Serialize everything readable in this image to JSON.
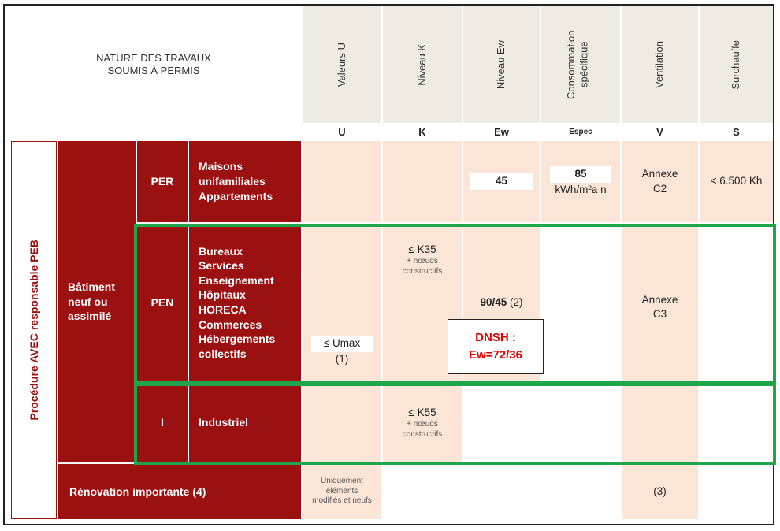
{
  "header": {
    "nature_line1": "NATURE DES TRAVAUX",
    "nature_line2": "SOUMIS À PERMIS",
    "columns": [
      {
        "title": "Valeurs U",
        "letter": "U"
      },
      {
        "title": "Niveau K",
        "letter": "K"
      },
      {
        "title": "Niveau Ew",
        "letter": "Ew"
      },
      {
        "title": "Consommation spécifique",
        "letter": "Espec"
      },
      {
        "title": "Ventilation",
        "letter": "V"
      },
      {
        "title": "Surchauffe",
        "letter": "S"
      }
    ]
  },
  "side_label": "Procédure AVEC responsable PEB",
  "batiment_label": "Bâtiment neuf ou assimilé",
  "rows": {
    "per": {
      "code": "PER",
      "types": [
        "Maisons",
        "unifamiliales",
        "Appartements"
      ],
      "ew": "45",
      "espec_value": "85",
      "espec_unit": "kWh/m²a n",
      "ventilation": "Annexe C2",
      "surchauffe": "< 6.500 Kh"
    },
    "pen": {
      "code": "PEN",
      "types": [
        "Bureaux",
        "Services",
        "Enseignement",
        "Hôpitaux",
        "HORECA",
        "Commerces",
        "Hébergements",
        "collectifs"
      ],
      "u_value": "≤ Umax",
      "u_note": "(1)",
      "k_value": "≤ K35",
      "k_note": "+ nœuds constructifs",
      "ew_value": "90/45",
      "ew_note": "(2)",
      "ventilation": "Annexe C3"
    },
    "i": {
      "code": "I",
      "type": "Industriel",
      "k_value": "≤ K55",
      "k_note": "+ nœuds constructifs"
    },
    "renovation": {
      "label": "Rénovation importante (4)",
      "u_note": "Uniquement éléments modifiés et neufs",
      "ventilation": "(3)"
    }
  },
  "dnsh": {
    "line1": "DNSH :",
    "line2": "Ew=72/36"
  },
  "colors": {
    "dark_red": "#9b1111",
    "peach": "#fbe5d6",
    "header_bg": "#efebe2",
    "green": "#1fa54a",
    "dnsh_red": "#e00000"
  }
}
